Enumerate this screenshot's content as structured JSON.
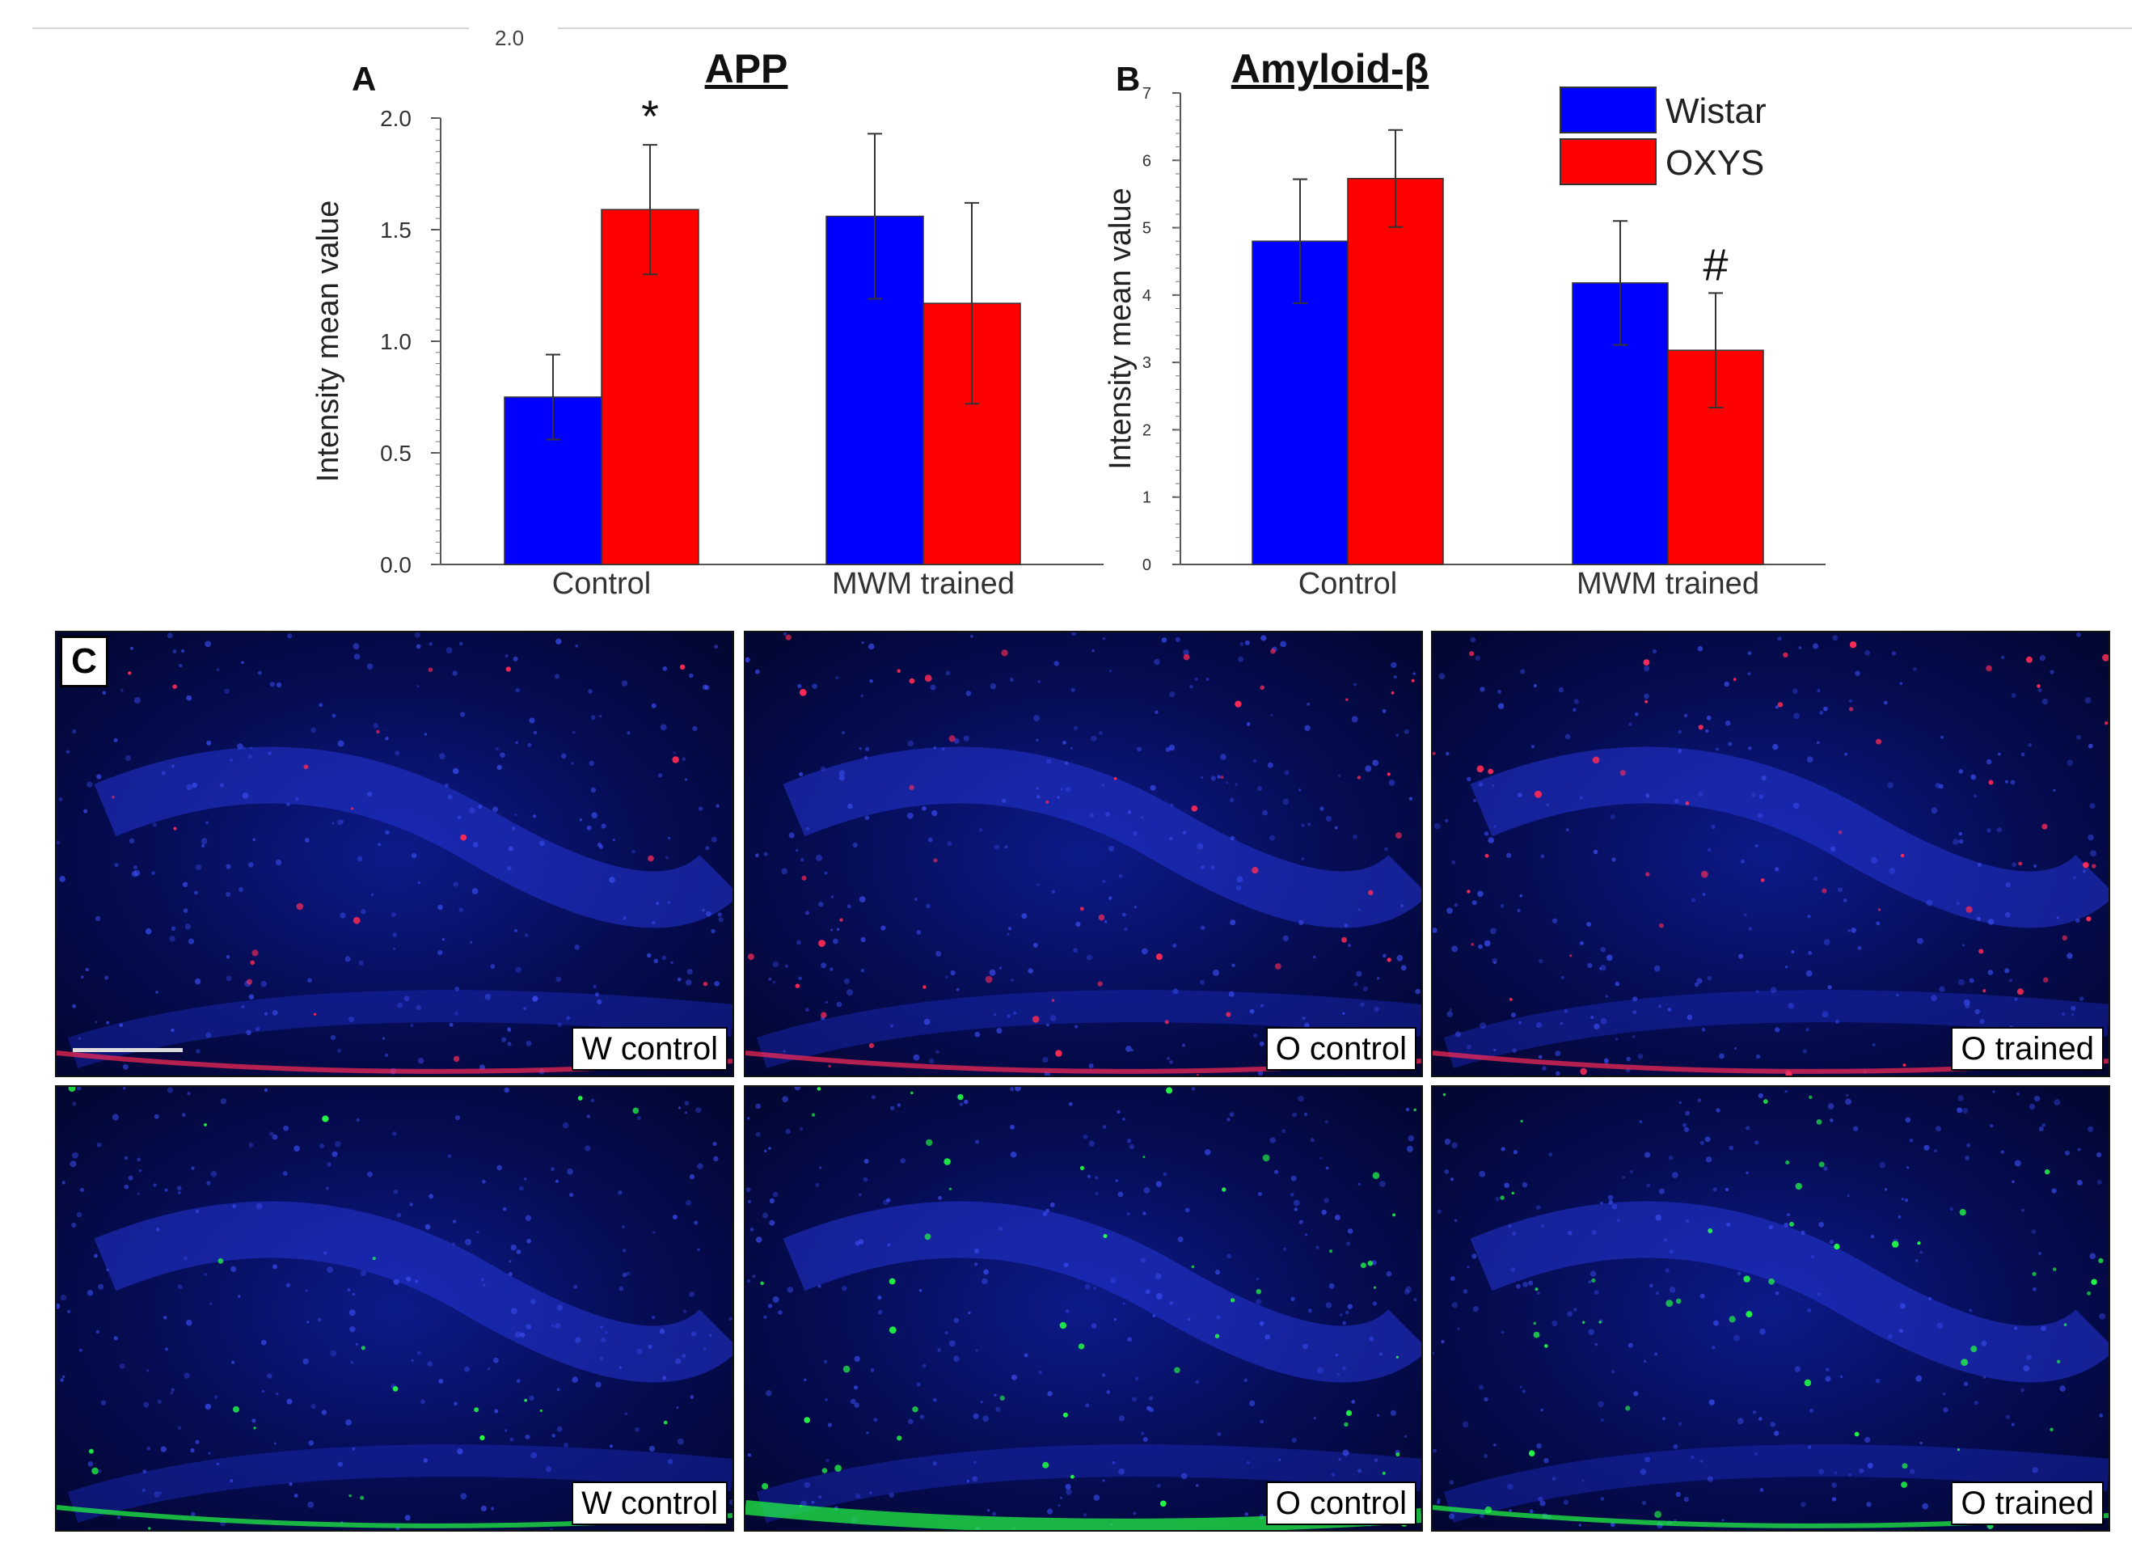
{
  "header": {
    "note": "2.0"
  },
  "legend": {
    "series": [
      {
        "name": "Wistar",
        "color": "#0000ff"
      },
      {
        "name": "OXYS",
        "color": "#ff0000"
      }
    ]
  },
  "chart_data": [
    {
      "type": "bar",
      "panel_label": "A",
      "title": "APP",
      "ylabel": "Intensity  mean value",
      "xlabel": "",
      "categories": [
        "Control",
        "MWM trained"
      ],
      "series": [
        {
          "name": "Wistar",
          "color": "#0000ff",
          "values": [
            0.75,
            1.56
          ],
          "errors": [
            0.19,
            0.37
          ]
        },
        {
          "name": "OXYS",
          "color": "#ff0000",
          "values": [
            1.59,
            1.17
          ],
          "errors": [
            0.29,
            0.45
          ]
        }
      ],
      "ylim": [
        0,
        2.0
      ],
      "yticks": [
        "0.0",
        "0.5",
        "1.0",
        "1.5",
        "2.0"
      ],
      "yticks_values": [
        0,
        0.5,
        1.0,
        1.5,
        2.0
      ],
      "annotations": [
        {
          "text": "*",
          "category": 0,
          "series": 1
        }
      ]
    },
    {
      "type": "bar",
      "panel_label": "B",
      "title": "Amyloid-β",
      "ylabel": "Intensity mean value",
      "xlabel": "",
      "categories": [
        "Control",
        "MWM trained"
      ],
      "series": [
        {
          "name": "Wistar",
          "color": "#0000ff",
          "values": [
            4.8,
            4.18
          ],
          "errors": [
            0.92,
            0.92
          ]
        },
        {
          "name": "OXYS",
          "color": "#ff0000",
          "values": [
            5.73,
            3.18
          ],
          "errors": [
            0.72,
            0.85
          ]
        }
      ],
      "ylim": [
        0,
        7
      ],
      "yticks": [
        "0",
        "1",
        "2",
        "3",
        "4",
        "5",
        "6",
        "7"
      ],
      "yticks_values": [
        0,
        1,
        2,
        3,
        4,
        5,
        6,
        7
      ],
      "annotations": [
        {
          "text": "#",
          "category": 1,
          "series": 1
        }
      ]
    }
  ],
  "micrographs": {
    "panel_label": "C",
    "rows": [
      {
        "stain_color": "#ff2a55",
        "labels": [
          "W control",
          "O control",
          "O trained"
        ]
      },
      {
        "stain_color": "#22ff44",
        "labels": [
          "W control",
          "O control",
          "O trained"
        ]
      }
    ]
  }
}
